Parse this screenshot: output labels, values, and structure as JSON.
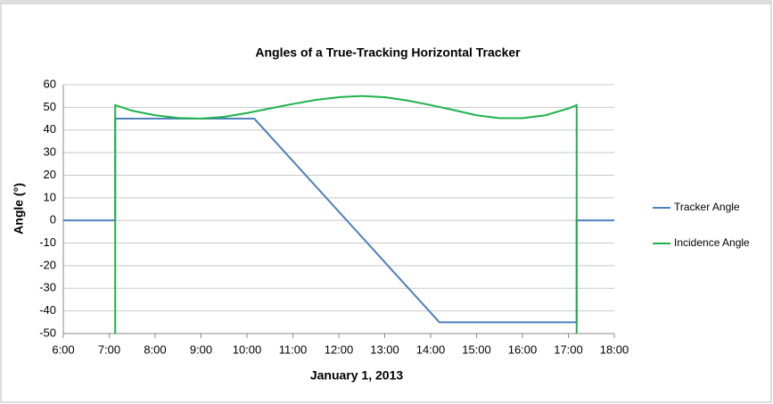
{
  "chart_data": {
    "type": "line",
    "title": "Angles of a True-Tracking Horizontal Tracker",
    "xlabel": "January 1, 2013",
    "ylabel": "Angle (°)",
    "xlim": [
      6,
      18
    ],
    "xticks": [
      {
        "value": 6,
        "label": "6:00"
      },
      {
        "value": 7,
        "label": "7:00"
      },
      {
        "value": 8,
        "label": "8:00"
      },
      {
        "value": 9,
        "label": "9:00"
      },
      {
        "value": 10,
        "label": "10:00"
      },
      {
        "value": 11,
        "label": "11:00"
      },
      {
        "value": 12,
        "label": "12:00"
      },
      {
        "value": 13,
        "label": "13:00"
      },
      {
        "value": 14,
        "label": "14:00"
      },
      {
        "value": 15,
        "label": "15:00"
      },
      {
        "value": 16,
        "label": "16:00"
      },
      {
        "value": 17,
        "label": "17:00"
      },
      {
        "value": 18,
        "label": "18:00"
      }
    ],
    "ylim": [
      -50,
      60
    ],
    "yticks": [
      -50,
      -40,
      -30,
      -20,
      -10,
      0,
      10,
      20,
      30,
      40,
      50,
      60
    ],
    "grid": true,
    "legend": "right",
    "series": [
      {
        "name": "Tracker Angle",
        "color": "#4f81bd",
        "x": [
          6,
          7.13,
          7.13,
          10.16,
          14.19,
          17.18,
          17.18,
          18
        ],
        "values": [
          0,
          0,
          45,
          45,
          -45,
          -45,
          0,
          0
        ]
      },
      {
        "name": "Incidence Angle",
        "color": "#1db34a",
        "x": [
          7.13,
          7.13,
          7.5,
          8,
          8.5,
          9,
          9.5,
          10,
          10.5,
          11,
          11.5,
          12,
          12.5,
          13,
          13.5,
          14,
          14.5,
          15,
          15.5,
          16,
          16.5,
          17,
          17.18,
          17.18
        ],
        "values": [
          -50,
          51,
          48.5,
          46.5,
          45.3,
          45,
          45.8,
          47.5,
          49.5,
          51.5,
          53.3,
          54.5,
          55,
          54.5,
          53,
          51,
          48.8,
          46.5,
          45.2,
          45.2,
          46.5,
          49.5,
          51,
          -50
        ]
      }
    ]
  }
}
